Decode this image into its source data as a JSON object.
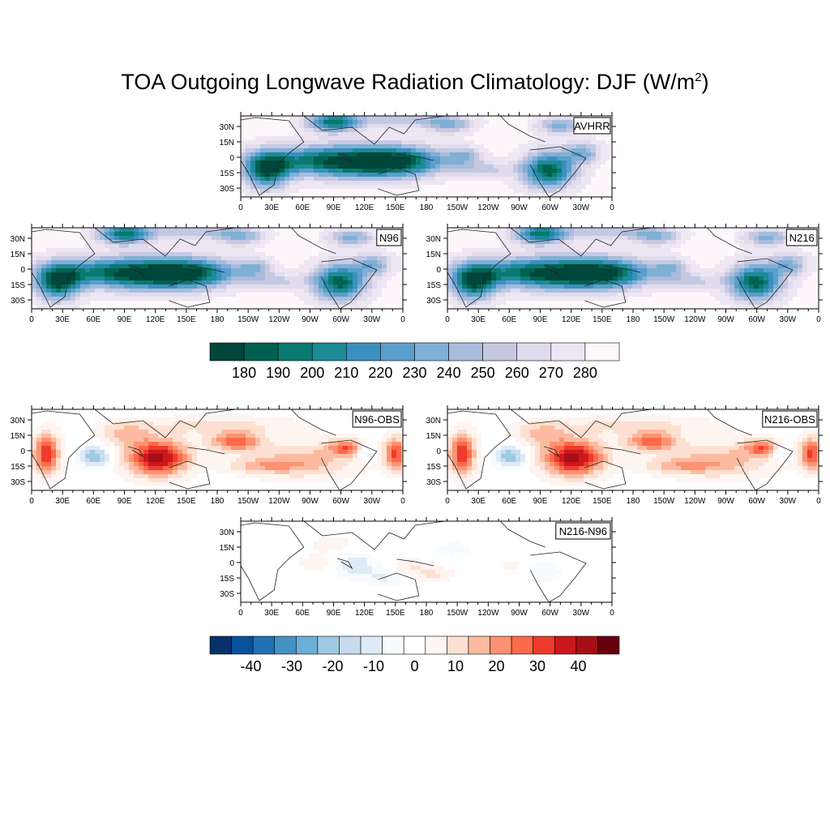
{
  "title": {
    "main": "TOA Outgoing Longwave Radiation Climatology: DJF (W/m",
    "sup": "2",
    "close": ")"
  },
  "lat_ticks": [
    "30N",
    "15N",
    "0",
    "15S",
    "30S"
  ],
  "lon_ticks": [
    "0",
    "30E",
    "60E",
    "90E",
    "120E",
    "150E",
    "180",
    "150W",
    "120W",
    "90W",
    "60W",
    "30W",
    "0"
  ],
  "panels": [
    {
      "id": "avhrr",
      "label": "AVHRR",
      "kind": "olr"
    },
    {
      "id": "n96",
      "label": "N96",
      "kind": "olr"
    },
    {
      "id": "n216",
      "label": "N216",
      "kind": "olr"
    },
    {
      "id": "n96obs",
      "label": "N96-OBS",
      "kind": "diff"
    },
    {
      "id": "n216obs",
      "label": "N216-OBS",
      "kind": "diff"
    },
    {
      "id": "n216n96",
      "label": "N216-N96",
      "kind": "diff2"
    }
  ],
  "colorbar_olr": {
    "labels": [
      "180",
      "190",
      "200",
      "210",
      "220",
      "230",
      "240",
      "250",
      "260",
      "270",
      "280"
    ],
    "colors": [
      "#00463a",
      "#00604f",
      "#087a6f",
      "#1c8a97",
      "#3b8fc0",
      "#5a9fcc",
      "#80b0d5",
      "#a8bcdc",
      "#c6c8e2",
      "#e0dced",
      "#eee7f3",
      "#fdf7fb"
    ]
  },
  "colorbar_diff": {
    "labels": [
      "-40",
      "-30",
      "-20",
      "-10",
      "0",
      "10",
      "20",
      "30",
      "40"
    ],
    "colors": [
      "#08306b",
      "#08519c",
      "#2171b5",
      "#4292c6",
      "#6baed6",
      "#9ecae1",
      "#c6dbef",
      "#deebf7",
      "#f7fbff",
      "#ffffff",
      "#fff5f0",
      "#fee0d2",
      "#fcbba1",
      "#fc9272",
      "#fb6a4a",
      "#ef3b2c",
      "#cb181d",
      "#a50f15",
      "#67000d"
    ]
  }
}
